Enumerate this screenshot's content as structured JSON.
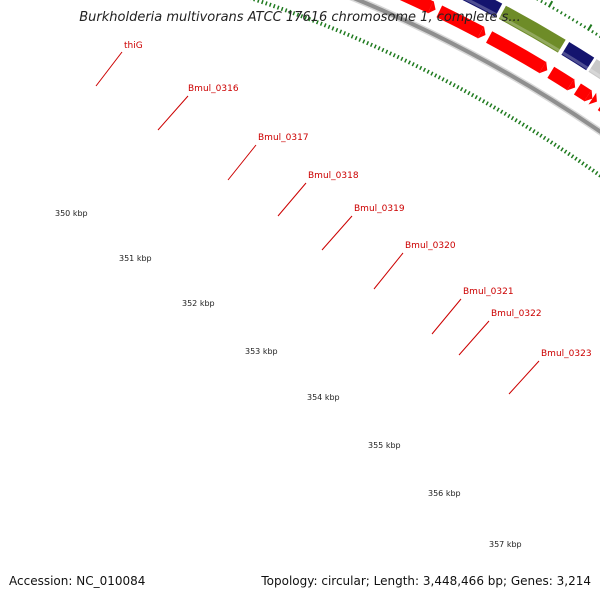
{
  "title": "Burkholderia multivorans ATCC 17616 chromosome 1, complete s...",
  "footer": {
    "accession": "Accession: NC_010084",
    "summary": "Topology: circular; Length: 3,448,466 bp; Genes: 3,214"
  },
  "colors": {
    "backbone": "#8f8f8f",
    "cds_red": "#ff0000",
    "tick_green": "#1f7a1f",
    "label_red": "#cc0000",
    "thiG": "#4f86c4",
    "Bmul_0316": "#1f33ff",
    "Bmul_0317": "#14146e",
    "Bmul_0318": "#14146e",
    "Bmul_0319": "#6e8c28",
    "Bmul_0320": "#14146e",
    "Bmul_0321": "#c8c8c8",
    "Bmul_0323": "#33f0a0",
    "next_gene": "#f0961e",
    "last_gene": "#6e8c28"
  },
  "kbp_labels": [
    "350 kbp",
    "351 kbp",
    "352 kbp",
    "353 kbp",
    "354 kbp",
    "355 kbp",
    "356 kbp",
    "357 kbp"
  ],
  "genes": [
    {
      "name": "",
      "color_key": "thiG"
    },
    {
      "name": "thiG",
      "color_key": "Bmul_0316"
    },
    {
      "name": "Bmul_0316",
      "color_key": "Bmul_0316"
    },
    {
      "name": "Bmul_0317",
      "color_key": "Bmul_0317"
    },
    {
      "name": "Bmul_0318",
      "color_key": "Bmul_0318"
    },
    {
      "name": "Bmul_0319",
      "color_key": "Bmul_0319"
    },
    {
      "name": "Bmul_0320",
      "color_key": "Bmul_0320"
    },
    {
      "name": "Bmul_0321",
      "color_key": "Bmul_0321"
    },
    {
      "name": "Bmul_0322",
      "color_key": "Bmul_0323"
    },
    {
      "name": "Bmul_0323",
      "color_key": "Bmul_0323"
    },
    {
      "name": "",
      "color_key": "next_gene"
    },
    {
      "name": "",
      "color_key": "last_gene"
    }
  ]
}
